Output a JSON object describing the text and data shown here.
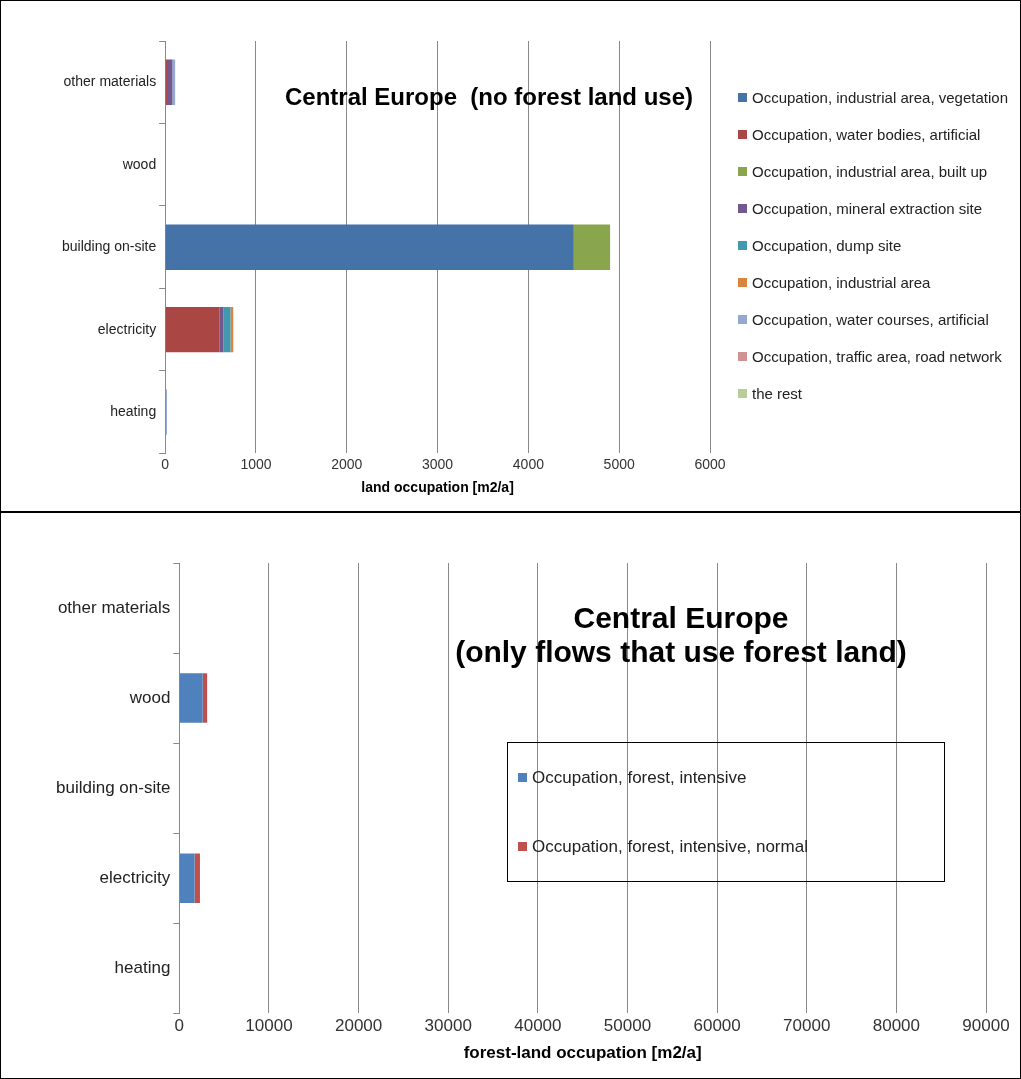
{
  "chart_data": [
    {
      "type": "bar",
      "orientation": "horizontal",
      "stacked": true,
      "title": "Central Europe  (no forest land use)",
      "xlabel": "land occupation [m2/a]",
      "categories": [
        "other materials",
        "wood",
        "building on-site",
        "electricity",
        "heating"
      ],
      "xlim": [
        0,
        6000
      ],
      "xticks": [
        0,
        1000,
        2000,
        3000,
        4000,
        5000,
        6000
      ],
      "grid": "x",
      "legend": "right",
      "series": [
        {
          "name": "Occupation, industrial area, vegetation",
          "color": "#4572a7",
          "values": [
            null,
            null,
            4500,
            null,
            null
          ]
        },
        {
          "name": "Occupation, water bodies, artificial",
          "color": "#aa4643",
          "values": [
            20,
            null,
            null,
            600,
            null
          ]
        },
        {
          "name": "Occupation, industrial area, built up",
          "color": "#89a54e",
          "values": [
            null,
            null,
            400,
            null,
            null
          ]
        },
        {
          "name": "Occupation, mineral extraction site",
          "color": "#71588f",
          "values": [
            60,
            null,
            null,
            40,
            null
          ]
        },
        {
          "name": "Occupation, dump site",
          "color": "#4198af",
          "values": [
            null,
            null,
            null,
            80,
            null
          ]
        },
        {
          "name": "Occupation, industrial area",
          "color": "#db843d",
          "values": [
            null,
            null,
            null,
            30,
            null
          ]
        },
        {
          "name": "Occupation, water courses, artificial",
          "color": "#93a9cf",
          "values": [
            30,
            null,
            null,
            null,
            20
          ]
        },
        {
          "name": "Occupation, traffic area, road network",
          "color": "#d19392",
          "values": [
            null,
            null,
            null,
            null,
            null
          ]
        },
        {
          "name": "the rest",
          "color": "#b9cd96",
          "values": [
            null,
            null,
            null,
            null,
            null
          ]
        }
      ]
    },
    {
      "type": "bar",
      "orientation": "horizontal",
      "stacked": true,
      "title": "Central Europe\n(only flows that use forest land)",
      "xlabel": "forest-land occupation [m2/a]",
      "categories": [
        "other materials",
        "wood",
        "building on-site",
        "electricity",
        "heating"
      ],
      "xlim": [
        0,
        90000
      ],
      "xticks": [
        0,
        10000,
        20000,
        30000,
        40000,
        50000,
        60000,
        70000,
        80000,
        90000
      ],
      "grid": "x",
      "legend": "right",
      "series": [
        {
          "name": "Occupation, forest, intensive",
          "color": "#4f81bd",
          "values": [
            null,
            2600,
            null,
            1700,
            null
          ]
        },
        {
          "name": "Occupation, forest, intensive, normal",
          "color": "#c0504d",
          "values": [
            null,
            500,
            null,
            600,
            null
          ]
        }
      ]
    }
  ]
}
